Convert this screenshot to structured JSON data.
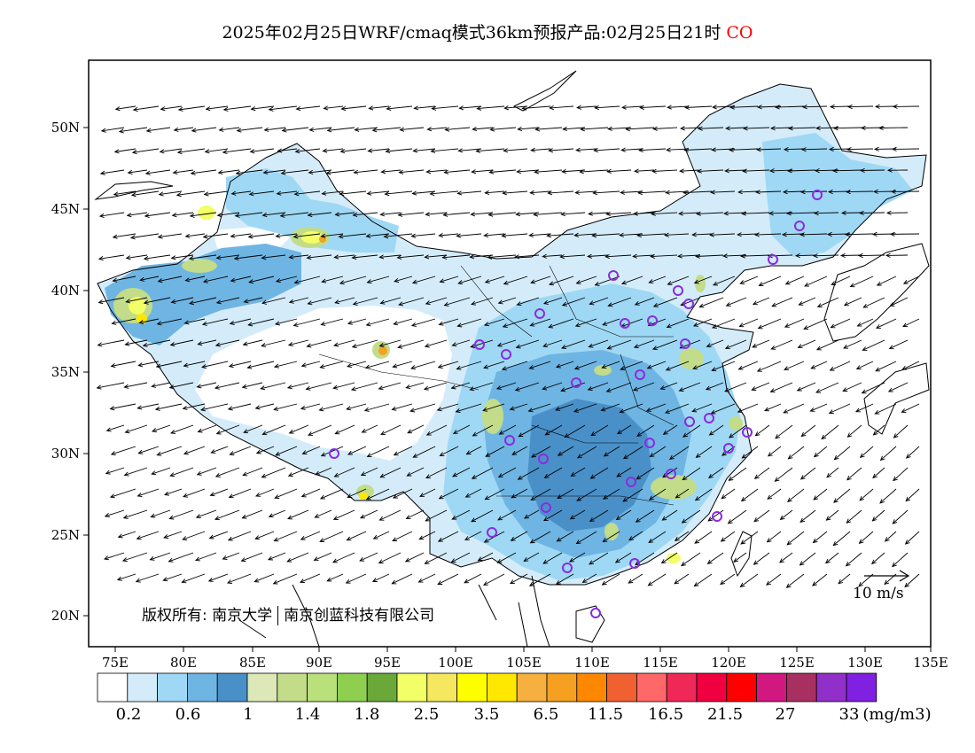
{
  "title": {
    "main": "2025年02月25日WRF/cmaq模式36km预报产品:02月25日21时",
    "species": "CO",
    "species_color": "#ff0000"
  },
  "axes": {
    "x_ticks": [
      "75E",
      "80E",
      "85E",
      "90E",
      "95E",
      "100E",
      "105E",
      "110E",
      "115E",
      "120E",
      "125E",
      "130E",
      "135E"
    ],
    "y_ticks": [
      "50N",
      "45N",
      "40N",
      "35N",
      "30N",
      "25N",
      "20N"
    ]
  },
  "copyright": {
    "left": "版权所有: 南京大学",
    "right": "南京创蓝科技有限公司"
  },
  "wind_reference": {
    "label": "10 m/s"
  },
  "colorbar": {
    "colors": [
      "#ffffff",
      "#d4ecfa",
      "#9fd8f5",
      "#6fb5e3",
      "#4a90c8",
      "#dde8b8",
      "#c2dc8a",
      "#b9e07a",
      "#8fcf50",
      "#6aa83a",
      "#f2ff66",
      "#f5e860",
      "#ffff00",
      "#ffe800",
      "#f5b040",
      "#f5a020",
      "#ff8800",
      "#f06030",
      "#ff6868",
      "#f02858",
      "#f00040",
      "#ff0000",
      "#d01880",
      "#a83060",
      "#9030c8",
      "#8020e0"
    ],
    "labels": [
      "0.2",
      "0.6",
      "1",
      "1.4",
      "1.8",
      "2.5",
      "3.5",
      "6.5",
      "11.5",
      "16.5",
      "21.5",
      "27",
      "33"
    ],
    "unit": "(mg/m3)"
  },
  "legend_colors": {
    "station_marker": "#8a2be2",
    "wind_arrow": "#000000",
    "boundary": "#000000"
  }
}
